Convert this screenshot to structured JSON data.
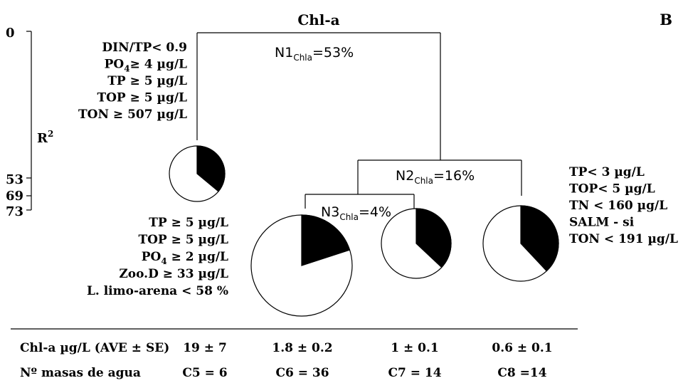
{
  "title": "Chl-a",
  "panel_label": "B",
  "r2_axis": {
    "label": "R",
    "label_sup": "2",
    "ticks": [
      "0",
      "53",
      "69",
      "73"
    ]
  },
  "nodes": {
    "n1": {
      "name": "N1",
      "sub": "Chla",
      "value": "=53%"
    },
    "n2": {
      "name": "N2",
      "sub": "Chla",
      "value": "=16%"
    },
    "n3": {
      "name": "N3",
      "sub": "Chla",
      "value": "=4%"
    }
  },
  "rules": {
    "c5": [
      {
        "t": "DIN/TP< 0.9"
      },
      {
        "t": "PO",
        "sub": "4",
        "t2": "≥ 4 µg/L"
      },
      {
        "t": "TP ≥ 5 µg/L"
      },
      {
        "t": "TOP ≥ 5 µg/L"
      },
      {
        "t": "TON ≥ 507 µg/L"
      }
    ],
    "c6": [
      {
        "t": "TP ≥ 5 µg/L"
      },
      {
        "t": "TOP ≥ 5 µg/L"
      },
      {
        "t": "PO",
        "sub": "4",
        "t2": " ≥ 2 µg/L"
      },
      {
        "t": "Zoo.D ≥ 33 µg/L"
      },
      {
        "t": "L. limo-arena < 58 %"
      }
    ],
    "c8": [
      {
        "t": "TP< 3 µg/L"
      },
      {
        "t": "TOP< 5 µg/L"
      },
      {
        "t": "TN < 160 µg/L"
      },
      {
        "t": "SALM - si"
      },
      {
        "t": "TON < 191 µg/L"
      }
    ]
  },
  "pies": [
    {
      "id": "c5",
      "fraction": 0.36
    },
    {
      "id": "c6",
      "fraction": 0.2
    },
    {
      "id": "c7",
      "fraction": 0.37
    },
    {
      "id": "c8",
      "fraction": 0.38
    }
  ],
  "table": {
    "rows": [
      {
        "label": "Chl-a µg/L (AVE ± SE)",
        "cells": [
          "19 ± 7",
          "1.8 ± 0.2",
          "1 ± 0.1",
          "0.6 ± 0.1"
        ]
      },
      {
        "label": "Nº masas de agua",
        "cells": [
          "C5 = 6",
          "C6 = 36",
          "C7 = 14",
          "C8 =14"
        ]
      }
    ]
  },
  "colors": {
    "ink": "#000000",
    "fill": "#ffffff"
  }
}
